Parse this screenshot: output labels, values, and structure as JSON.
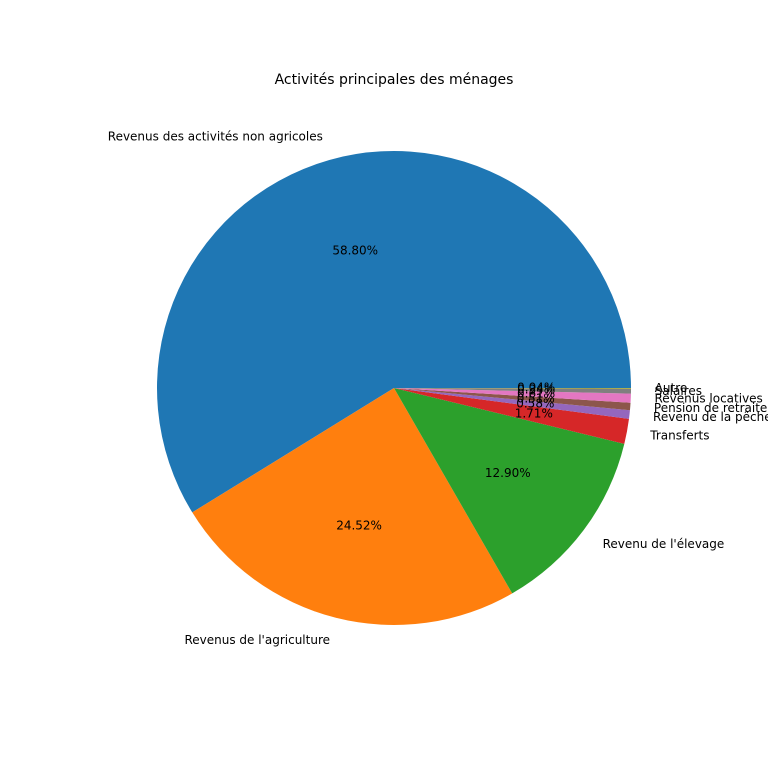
{
  "chart_data": {
    "type": "pie",
    "title": "Activités principales des ménages",
    "categories": [
      "Revenus des activités non agricoles",
      "Revenus de l'agriculture",
      "Revenu de l'élevage",
      "Transferts",
      "Revenu de la pêche",
      "Pension de retraite",
      "Revenus locatives",
      "Salaires",
      "Autre"
    ],
    "values": [
      58.8,
      24.52,
      12.9,
      1.71,
      0.58,
      0.51,
      0.61,
      0.34,
      0.04
    ],
    "value_labels": [
      "58.80%",
      "24.52%",
      "12.90%",
      "1.71%",
      "0.58%",
      "0.51%",
      "0.61%",
      "0.34%",
      "0.04%"
    ],
    "colors": [
      "#1f77b4",
      "#ff7f0e",
      "#2ca02c",
      "#d62728",
      "#9467bd",
      "#8c564b",
      "#e377c2",
      "#7f7f7f",
      "#bcbd22"
    ],
    "start_angle": 0,
    "direction": "counterclockwise"
  }
}
